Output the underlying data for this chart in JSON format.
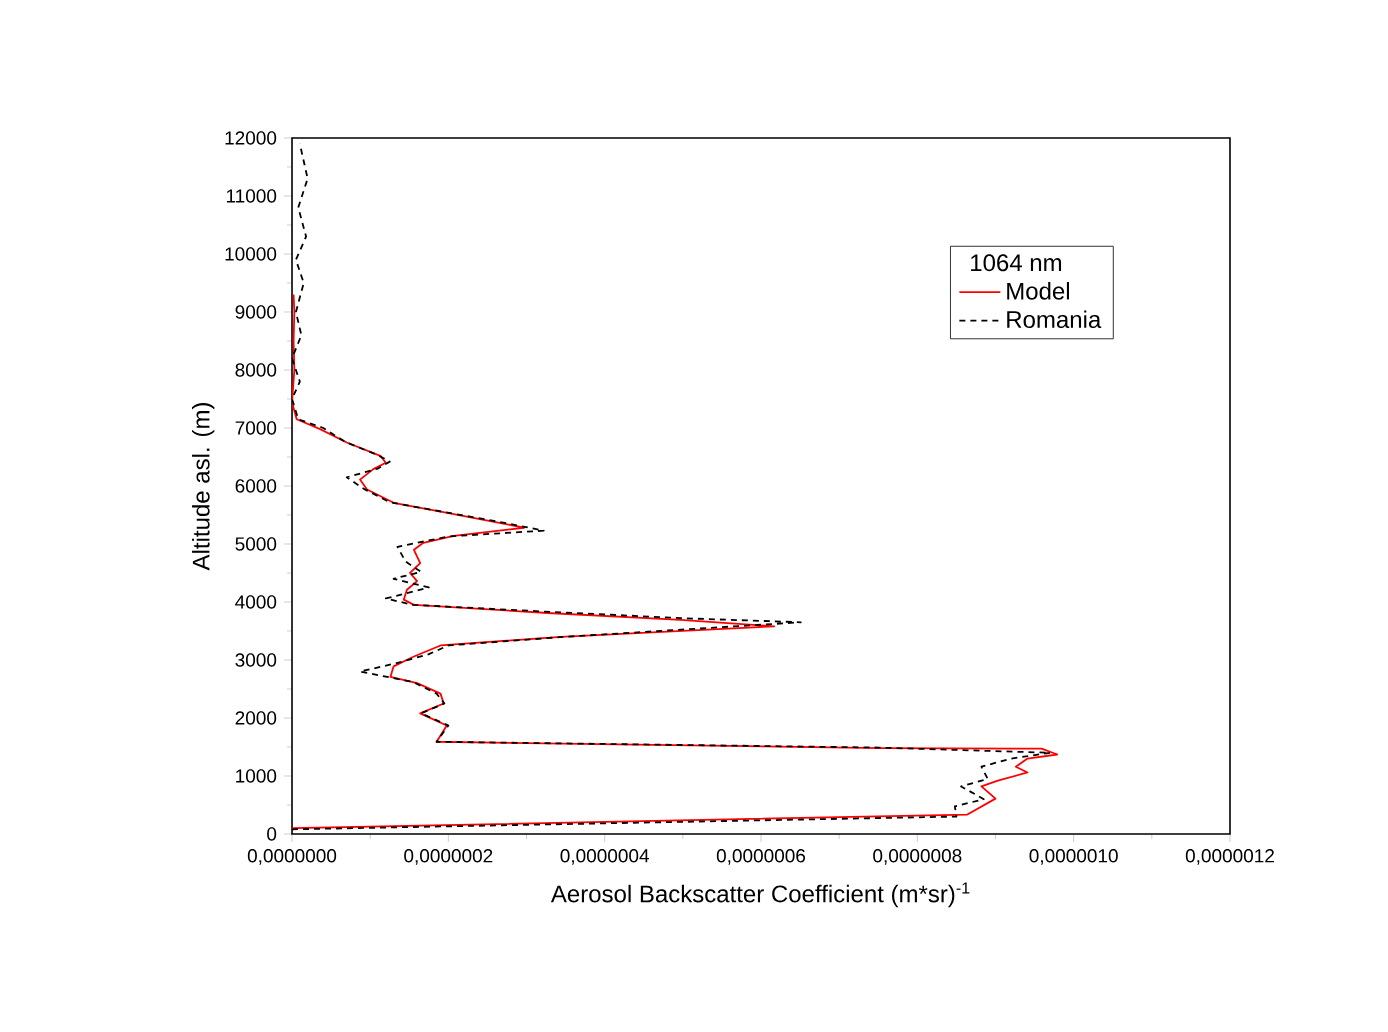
{
  "chart_data": {
    "type": "line",
    "xlabel": "Aerosol Backscatter Coefficient (m*sr)$^{-1}$",
    "ylabel": "Altitude asl. (m)",
    "legend_title": "1064 nm",
    "legend": "top right",
    "grid": false,
    "xlim": [
      0,
      1.2e-06
    ],
    "ylim": [
      0,
      12000
    ],
    "xticks": [
      {
        "value": 0,
        "label": "0,0000000"
      },
      {
        "value": 2e-07,
        "label": "0,0000002"
      },
      {
        "value": 4e-07,
        "label": "0,0000004"
      },
      {
        "value": 6e-07,
        "label": "0,0000006"
      },
      {
        "value": 8e-07,
        "label": "0,0000008"
      },
      {
        "value": 1e-06,
        "label": "0,0000010"
      },
      {
        "value": 1.2e-06,
        "label": "0,0000012"
      }
    ],
    "yticks": [
      0,
      1000,
      2000,
      3000,
      4000,
      5000,
      6000,
      7000,
      8000,
      9000,
      10000,
      11000,
      12000
    ],
    "series": [
      {
        "name": "Model",
        "color": "#ff0000",
        "line_style": "solid",
        "x": [
          0,
          8.64e-07,
          9e-07,
          8.82e-07,
          9.03e-07,
          9.41e-07,
          9.26e-07,
          9.41e-07,
          9.79e-07,
          9.59e-07,
          7.54e-07,
          1.85e-07,
          1.98e-07,
          1.64e-07,
          1.94e-07,
          1.9e-07,
          1.6e-07,
          1.26e-07,
          1.3e-07,
          1.56e-07,
          1.9e-07,
          3.44e-07,
          6.17e-07,
          4.97e-07,
          3.27e-07,
          1.56e-07,
          1.43e-07,
          1.47e-07,
          1.6e-07,
          1.51e-07,
          1.64e-07,
          1.56e-07,
          1.68e-07,
          2.07e-07,
          2.97e-07,
          2.67e-07,
          1.97e-07,
          1.3e-07,
          9.6e-08,
          8.7e-08,
          1.04e-07,
          1.2e-07,
          1.13e-07,
          7e-08,
          3.6e-08,
          6e-09,
          0,
          3e-09,
          2e-09,
          3e-09,
          2e-09
        ],
        "values": [
          100,
          335,
          610,
          820,
          920,
          1060,
          1160,
          1300,
          1370,
          1470,
          1480,
          1590,
          1870,
          2080,
          2250,
          2420,
          2600,
          2710,
          2890,
          3060,
          3250,
          3400,
          3580,
          3690,
          3810,
          3950,
          4040,
          4210,
          4360,
          4500,
          4670,
          4900,
          5020,
          5140,
          5280,
          5360,
          5540,
          5710,
          5940,
          6110,
          6290,
          6400,
          6520,
          6750,
          6980,
          7150,
          7440,
          8000,
          8500,
          9000,
          9300
        ]
      },
      {
        "name": "Romania",
        "color": "#000000",
        "line_style": "dashed",
        "x": [
          0,
          8.5e-07,
          8.48e-07,
          8.85e-07,
          8.56e-07,
          8.9e-07,
          8.82e-07,
          9.2e-07,
          9.7e-07,
          7.5e-07,
          1.85e-07,
          2e-07,
          1.65e-07,
          1.95e-07,
          1.85e-07,
          1.55e-07,
          8.7e-08,
          1.35e-07,
          1.75e-07,
          2e-07,
          3.5e-07,
          6.51e-07,
          5e-07,
          3.3e-07,
          1.55e-07,
          1.2e-07,
          1.75e-07,
          1.3e-07,
          1.65e-07,
          1.45e-07,
          1.35e-07,
          2e-07,
          3.22e-07,
          2.7e-07,
          1.95e-07,
          1.25e-07,
          9.2e-08,
          7e-08,
          1.1e-07,
          1.25e-07,
          1.1e-07,
          6.8e-08,
          4e-08,
          8e-09,
          0,
          1e-08,
          0,
          1.2e-08,
          5e-09,
          1.5e-08,
          5e-09,
          1.8e-08,
          8e-09,
          2e-08,
          1e-08
        ],
        "values": [
          80,
          300,
          475,
          600,
          820,
          950,
          1160,
          1300,
          1400,
          1490,
          1590,
          1870,
          2080,
          2250,
          2420,
          2620,
          2800,
          2950,
          3100,
          3250,
          3400,
          3650,
          3720,
          3830,
          3950,
          4060,
          4250,
          4400,
          4520,
          4700,
          4950,
          5130,
          5230,
          5370,
          5550,
          5720,
          5950,
          6150,
          6300,
          6420,
          6530,
          6760,
          7000,
          7150,
          7500,
          7800,
          8200,
          8600,
          9000,
          9500,
          9900,
          10300,
          10800,
          11300,
          11900
        ]
      }
    ]
  }
}
